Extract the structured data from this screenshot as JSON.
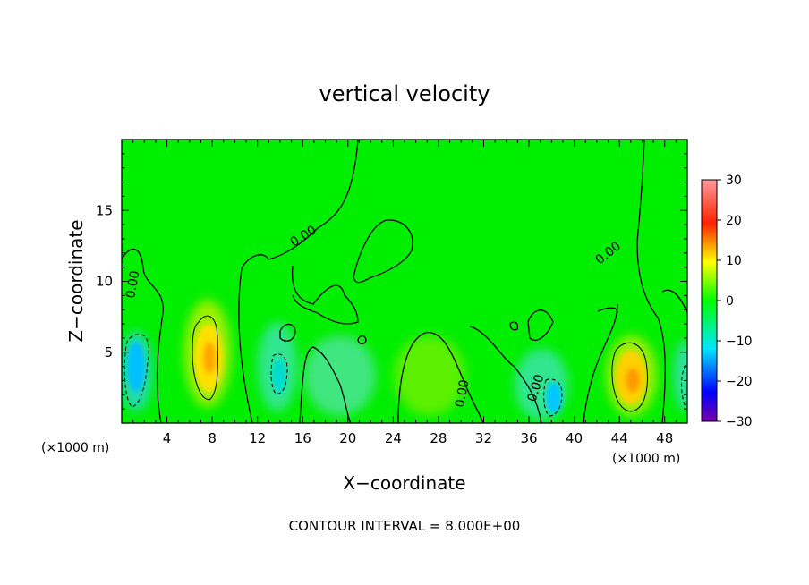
{
  "chart_data": {
    "type": "heatmap",
    "title": "vertical velocity",
    "xlabel": "X−coordinate",
    "ylabel": "Z−coordinate",
    "x_unit_label": "(×1000 m)",
    "z_unit_label": "(×1000 m)",
    "footer": "CONTOUR INTERVAL = 8.000E+00",
    "xlim": [
      0,
      50
    ],
    "ylim": [
      0,
      20
    ],
    "x_ticks": [
      4,
      8,
      12,
      16,
      20,
      24,
      28,
      32,
      36,
      40,
      44,
      48
    ],
    "y_ticks": [
      5,
      10,
      15
    ],
    "colorbar": {
      "min": -30,
      "max": 30,
      "ticks": [
        30,
        20,
        10,
        0,
        -10,
        -20,
        -30
      ],
      "tick_labels": [
        "30",
        "20",
        "10",
        "0",
        "−10",
        "−20",
        "−30"
      ]
    },
    "contour_label": "0.00",
    "features": [
      {
        "kind": "updraft",
        "x": 7.8,
        "z": 4.8,
        "value": 12
      },
      {
        "kind": "updraft",
        "x": 45,
        "z": 3.0,
        "value": 12
      },
      {
        "kind": "downdraft",
        "x": 1.3,
        "z": 3.8,
        "value": -9
      },
      {
        "kind": "downdraft",
        "x": 13.8,
        "z": 3.3,
        "value": -6
      },
      {
        "kind": "downdraft",
        "x": 37.8,
        "z": 1.8,
        "value": -10
      },
      {
        "kind": "downdraft",
        "x": 49.5,
        "z": 3.0,
        "value": -6
      }
    ]
  }
}
